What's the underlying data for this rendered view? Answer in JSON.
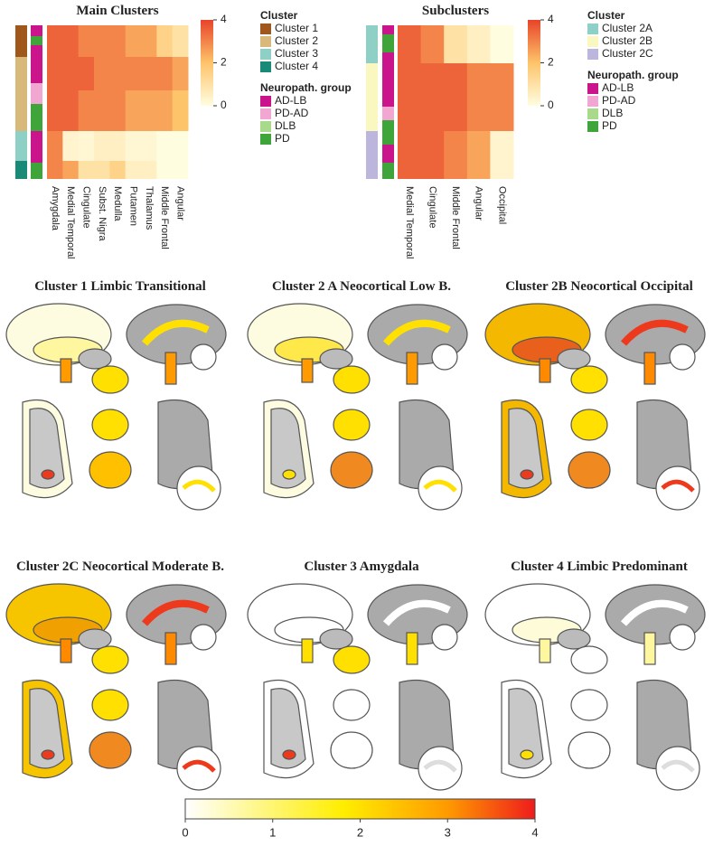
{
  "main_heatmap": {
    "title": "Main Clusters",
    "columns": [
      "Amygdala",
      "Medial Temporal",
      "Cingulate",
      "Subst. Nigra",
      "Medulla",
      "Putamen",
      "Thalamus",
      "Middle Frontal",
      "Angular"
    ],
    "rows": [
      [
        3.5,
        3.5,
        3,
        3,
        3,
        2.5,
        2.5,
        1.5,
        1
      ],
      [
        3.5,
        3.5,
        3.5,
        3,
        3,
        3,
        3,
        3,
        2.5
      ],
      [
        3.5,
        3.5,
        3,
        3,
        3,
        2.5,
        2.5,
        2.5,
        2
      ],
      [
        3,
        0.3,
        0.2,
        0.5,
        0.5,
        0.2,
        0.2,
        0,
        0
      ],
      [
        3,
        2.5,
        1,
        1,
        1.5,
        0.5,
        0.5,
        0,
        0
      ]
    ],
    "colorbar_lim": [
      0,
      4
    ],
    "colorbar_ticks": [
      0,
      2,
      4
    ],
    "cluster_title": "Cluster",
    "clusters": [
      {
        "name": "Cluster 1",
        "color": "#a0571c"
      },
      {
        "name": "Cluster 2",
        "color": "#d9b97a"
      },
      {
        "name": "Cluster 3",
        "color": "#8ecfc6"
      },
      {
        "name": "Cluster 4",
        "color": "#1a8a78"
      }
    ],
    "group_title": "Neuropath. group",
    "groups": [
      {
        "name": "AD-LB",
        "color": "#c9148c"
      },
      {
        "name": "PD-AD",
        "color": "#f2a6d2"
      },
      {
        "name": "DLB",
        "color": "#a9d98a"
      },
      {
        "name": "PD",
        "color": "#3fa53a"
      }
    ]
  },
  "sub_heatmap": {
    "title": "Subclusters",
    "columns": [
      "Medial Temporal",
      "Cingulate",
      "Middle Frontal",
      "Angular",
      "Occipital"
    ],
    "rows": [
      [
        3.5,
        3,
        1,
        0.5,
        0
      ],
      [
        3.5,
        3.5,
        3.5,
        3,
        3
      ],
      [
        3.5,
        3.5,
        3,
        2.5,
        0.3
      ]
    ],
    "colorbar_lim": [
      0,
      4
    ],
    "colorbar_ticks": [
      0,
      2,
      4
    ],
    "cluster_title": "Cluster",
    "clusters": [
      {
        "name": "Cluster 2A",
        "color": "#8ecfc6"
      },
      {
        "name": "Cluster 2B",
        "color": "#fbf7c0"
      },
      {
        "name": "Cluster 2C",
        "color": "#bdb6dc"
      }
    ],
    "group_title": "Neuropath. group",
    "groups": [
      {
        "name": "AD-LB",
        "color": "#c9148c"
      },
      {
        "name": "PD-AD",
        "color": "#f2a6d2"
      },
      {
        "name": "DLB",
        "color": "#a9d98a"
      },
      {
        "name": "PD",
        "color": "#3fa53a"
      }
    ]
  },
  "panels": [
    "Cluster 1 Limbic Transitional",
    "Cluster 2 A Neocortical Low B.",
    "Cluster 2B Neocortical Occipital",
    "Cluster 2C Neocortical Moderate B.",
    "Cluster 3 Amygdala",
    "Cluster 4  Limbic Predominant"
  ],
  "scale": {
    "lim": [
      0,
      4
    ],
    "ticks": [
      0,
      1,
      2,
      3,
      4
    ]
  }
}
